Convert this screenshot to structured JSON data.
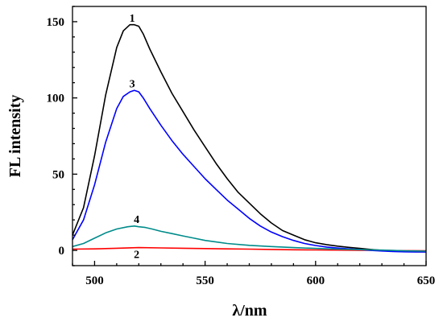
{
  "chart_data": {
    "type": "line",
    "title": "",
    "xlabel": "λ/nm",
    "ylabel": "FL intensity",
    "xlim": [
      490,
      650
    ],
    "ylim": [
      -10,
      160
    ],
    "xticks": [
      500,
      550,
      600,
      650
    ],
    "yticks": [
      0,
      50,
      100,
      150
    ],
    "grid": false,
    "legend": "none",
    "series": [
      {
        "label": "1",
        "color": "#000000",
        "x": [
          490,
          495,
          500,
          505,
          510,
          513,
          516,
          518,
          520,
          522,
          525,
          530,
          535,
          540,
          545,
          550,
          555,
          560,
          565,
          570,
          575,
          580,
          585,
          590,
          595,
          600,
          605,
          610,
          615,
          620,
          625,
          630,
          635,
          640,
          645,
          650
        ],
        "y": [
          10,
          28,
          62,
          102,
          133,
          144,
          148,
          148,
          147,
          142,
          132,
          117,
          103,
          91,
          79,
          68,
          57,
          47,
          38,
          31,
          24,
          18,
          13,
          10,
          7,
          5,
          3.8,
          2.8,
          2,
          1.3,
          0.6,
          0,
          -0.5,
          -0.8,
          -0.9,
          -1
        ]
      },
      {
        "label": "2",
        "color": "#ff0000",
        "x": [
          490,
          500,
          510,
          520,
          530,
          540,
          550,
          560,
          570,
          580,
          590,
          600,
          610,
          620,
          630,
          640,
          650
        ],
        "y": [
          0.8,
          1,
          1.4,
          1.8,
          1.6,
          1.4,
          1.2,
          1.0,
          0.8,
          0.6,
          0.4,
          0.3,
          0.2,
          0.1,
          0,
          -0.2,
          -0.3
        ]
      },
      {
        "label": "3",
        "color": "#0000ff",
        "x": [
          490,
          495,
          500,
          505,
          510,
          513,
          516,
          518,
          520,
          522,
          525,
          530,
          535,
          540,
          545,
          550,
          555,
          560,
          565,
          570,
          575,
          580,
          585,
          590,
          595,
          600,
          605,
          610,
          615,
          620,
          625,
          630,
          635,
          640,
          645,
          650
        ],
        "y": [
          7,
          20,
          43,
          71,
          93,
          101,
          104,
          105,
          104,
          100,
          93,
          82,
          72,
          63,
          55,
          47,
          40,
          33,
          27,
          21,
          16,
          12,
          9,
          6.5,
          4.5,
          3.2,
          2.2,
          1.5,
          1,
          0.5,
          0,
          -0.4,
          -0.7,
          -0.9,
          -1,
          -1
        ]
      },
      {
        "label": "4",
        "color": "#008b8b",
        "x": [
          490,
          495,
          500,
          505,
          510,
          515,
          518,
          520,
          523,
          526,
          530,
          535,
          540,
          545,
          550,
          555,
          560,
          570,
          580,
          590,
          600,
          610,
          620,
          630,
          640,
          650
        ],
        "y": [
          2.5,
          4.5,
          8,
          11.5,
          14,
          15.5,
          16,
          15.5,
          15,
          14,
          12.5,
          11,
          9.5,
          8,
          6.5,
          5.5,
          4.5,
          3.3,
          2.5,
          1.8,
          1.3,
          0.8,
          0.5,
          0.2,
          -0.3,
          -0.5
        ]
      }
    ],
    "annotations": [
      {
        "text": "1",
        "x": 517,
        "y": 150
      },
      {
        "text": "3",
        "x": 517,
        "y": 107
      },
      {
        "text": "4",
        "x": 519,
        "y": 18
      },
      {
        "text": "2",
        "x": 519,
        "y": -5
      }
    ]
  }
}
